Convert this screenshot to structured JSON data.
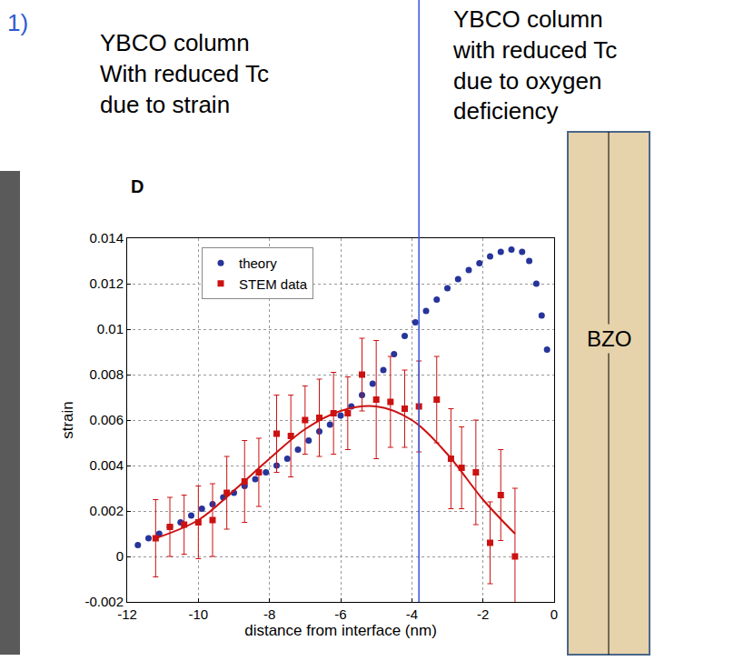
{
  "chart_data": {
    "type": "scatter",
    "figure_number": "1)",
    "panel_label": "D",
    "notes": [
      [
        "YBCO column",
        "With reduced Tc",
        "due to strain"
      ],
      [
        "YBCO column",
        "with reduced Tc",
        "due to oxygen",
        "deficiency"
      ]
    ],
    "region_label": "BZO",
    "divider_x": -3.8,
    "xlabel": "distance from interface (nm)",
    "ylabel": "strain",
    "xlim": [
      -12,
      0
    ],
    "xticks": [
      -12,
      -10,
      -8,
      -6,
      -4,
      -2,
      0
    ],
    "ylim": [
      -0.002,
      0.014
    ],
    "yticks": [
      -0.002,
      0,
      0.002,
      0.004,
      0.006,
      0.008,
      0.01,
      0.012,
      0.014
    ],
    "grid": true,
    "legend": "upper left",
    "series": [
      {
        "name": "theory",
        "color": "#27349a",
        "marker": "circle",
        "x": [
          -11.7,
          -11.4,
          -11.1,
          -10.8,
          -10.5,
          -10.2,
          -9.9,
          -9.6,
          -9.3,
          -9.0,
          -8.7,
          -8.4,
          -8.1,
          -7.8,
          -7.5,
          -7.2,
          -6.9,
          -6.6,
          -6.3,
          -6.0,
          -5.7,
          -5.4,
          -5.1,
          -4.8,
          -4.5,
          -4.2,
          -3.9,
          -3.6,
          -3.3,
          -3.0,
          -2.7,
          -2.4,
          -2.1,
          -1.8,
          -1.5,
          -1.2,
          -0.9,
          -0.7,
          -0.5,
          -0.35,
          -0.2
        ],
        "values": [
          0.0005,
          0.0008,
          0.001,
          0.0013,
          0.0015,
          0.0018,
          0.0021,
          0.0023,
          0.0026,
          0.0028,
          0.0031,
          0.0034,
          0.0037,
          0.004,
          0.0043,
          0.0047,
          0.0051,
          0.0055,
          0.0058,
          0.0062,
          0.0066,
          0.0071,
          0.0076,
          0.0082,
          0.0089,
          0.0097,
          0.0103,
          0.0108,
          0.0113,
          0.0118,
          0.0122,
          0.0126,
          0.0129,
          0.0132,
          0.0134,
          0.0135,
          0.0134,
          0.013,
          0.012,
          0.0106,
          0.0091
        ]
      },
      {
        "name": "STEM data",
        "color": "#cc1111",
        "marker": "square",
        "line_style": "solid",
        "x": [
          -11.2,
          -10.8,
          -10.4,
          -10.0,
          -9.6,
          -9.2,
          -8.7,
          -8.3,
          -7.8,
          -7.4,
          -7.0,
          -6.6,
          -6.2,
          -5.8,
          -5.4,
          -5.0,
          -4.6,
          -4.2,
          -3.8,
          -3.3,
          -2.9,
          -2.6,
          -2.2,
          -1.8,
          -1.5,
          -1.1
        ],
        "values": [
          0.0008,
          0.0013,
          0.0014,
          0.0015,
          0.0016,
          0.0028,
          0.0033,
          0.0037,
          0.0054,
          0.0053,
          0.006,
          0.0061,
          0.0063,
          0.0063,
          0.008,
          0.0069,
          0.0068,
          0.0065,
          0.0066,
          0.0069,
          0.0043,
          0.0039,
          0.0037,
          0.0006,
          0.0027,
          0.0
        ],
        "errors": [
          0.0017,
          0.0013,
          0.0013,
          0.0016,
          0.0016,
          0.0016,
          0.0018,
          0.0015,
          0.0017,
          0.0018,
          0.0015,
          0.0017,
          0.0018,
          0.0016,
          0.0016,
          0.0026,
          0.002,
          0.0017,
          0.002,
          0.0019,
          0.0022,
          0.0018,
          0.0023,
          0.0018,
          0.002,
          0.003
        ],
        "fit_x": [
          -11.2,
          -10.0,
          -9.0,
          -8.0,
          -7.0,
          -6.0,
          -5.0,
          -4.0,
          -3.0,
          -2.0,
          -1.1
        ],
        "fit_values": [
          0.0008,
          0.0016,
          0.0029,
          0.0043,
          0.0056,
          0.0064,
          0.0066,
          0.006,
          0.0045,
          0.0025,
          0.001
        ]
      }
    ]
  }
}
